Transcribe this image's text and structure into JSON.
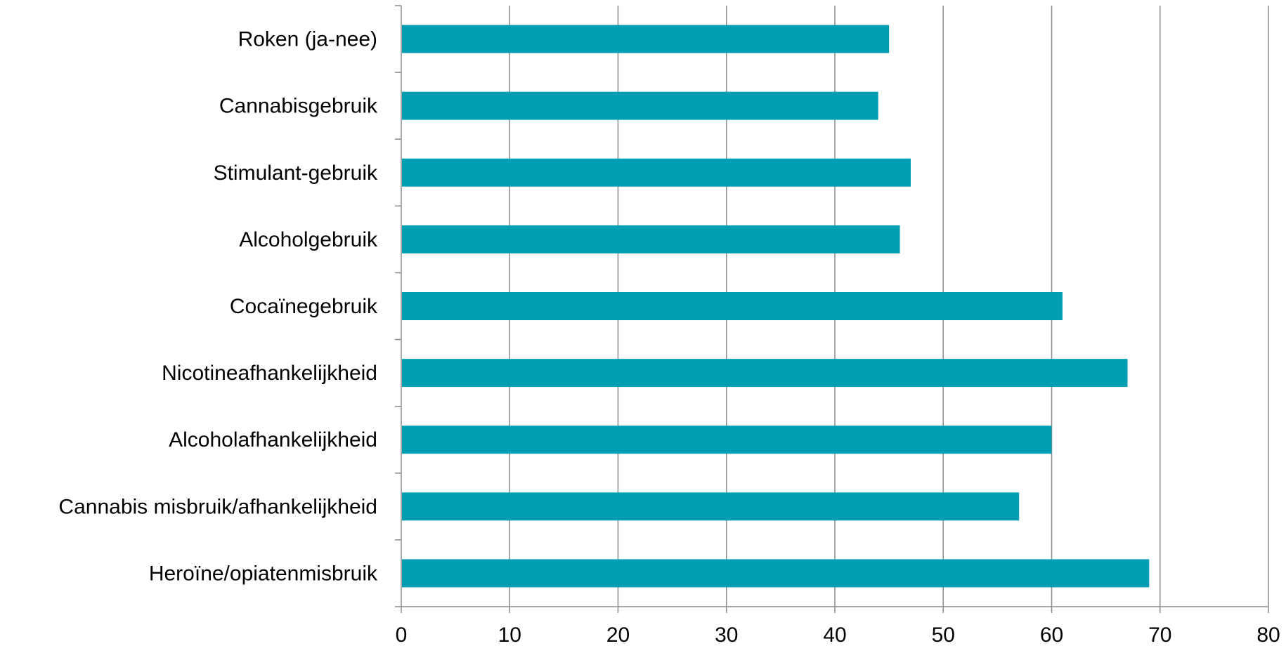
{
  "chart_data": {
    "type": "bar",
    "orientation": "horizontal",
    "categories": [
      "Roken (ja-nee)",
      "Cannabisgebruik",
      "Stimulant-gebruik",
      "Alcoholgebruik",
      "Cocaïnegebruik",
      "Nicotineafhankelijkheid",
      "Alcoholafhankelijkheid",
      "Cannabis misbruik/afhankelijkheid",
      "Heroïne/opiatenmisbruik"
    ],
    "values": [
      45,
      44,
      47,
      46,
      61,
      67,
      60,
      57,
      69
    ],
    "xlim": [
      0,
      80
    ],
    "xticks": [
      "0",
      "10",
      "20",
      "30",
      "40",
      "50",
      "60",
      "70",
      "80"
    ],
    "grid": "vertical",
    "legend": "none",
    "title": "",
    "xlabel": "",
    "ylabel": "",
    "colors": {
      "bar": "#009db3",
      "grid": "#8c8c8c",
      "axis": "#8c8c8c"
    }
  }
}
